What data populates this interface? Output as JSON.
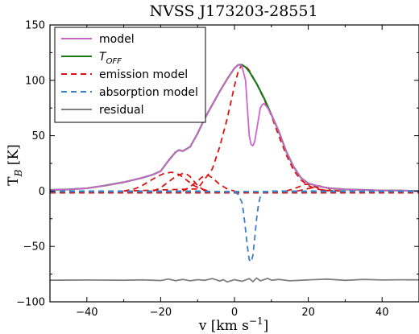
{
  "chart_data": {
    "type": "line",
    "title": "NVSS J173203-28551",
    "xlabel": "v [km s⁻¹]",
    "ylabel": "T_B [K]",
    "xlim": [
      -50,
      50
    ],
    "ylim": [
      -100,
      150
    ],
    "xticks": [
      -40,
      -20,
      0,
      20,
      40
    ],
    "yticks": [
      -100,
      -50,
      0,
      50,
      100,
      150
    ],
    "grid": false,
    "legend_position": "top-left",
    "series": [
      {
        "name": "model",
        "style": "solid",
        "color": "#cc66cc",
        "x": [
          -50,
          -45,
          -40,
          -35,
          -30,
          -25,
          -22,
          -20,
          -18,
          -16,
          -15,
          -14,
          -12,
          -10,
          -8,
          -6,
          -4,
          -2,
          0,
          1,
          2,
          3,
          3.5,
          4,
          4.5,
          5,
          5.5,
          6,
          6.5,
          7,
          7.5,
          8,
          9,
          10,
          12,
          14,
          16,
          18,
          20,
          22,
          24,
          26,
          28,
          30,
          35,
          40,
          45,
          50
        ],
        "y": [
          1,
          1.5,
          2.5,
          5,
          8,
          12,
          15,
          18,
          27,
          35,
          37,
          36,
          40,
          52,
          66,
          78,
          90,
          101,
          111,
          114,
          113,
          100,
          75,
          50,
          42,
          41,
          45,
          55,
          65,
          75,
          78,
          79,
          75,
          69,
          54,
          36,
          22,
          12,
          7,
          5,
          3.5,
          2.5,
          2,
          1.5,
          1,
          0.5,
          0.5,
          0
        ]
      },
      {
        "name": "T_OFF",
        "style": "solid",
        "color": "#1a7a1a",
        "x": [
          -50,
          -45,
          -40,
          -35,
          -30,
          -25,
          -22,
          -20,
          -18,
          -16,
          -15,
          -14,
          -12,
          -10,
          -8,
          -6,
          -4,
          -2,
          0,
          1,
          2,
          3,
          4,
          6,
          8,
          10,
          12,
          14,
          16,
          18,
          20,
          22,
          24,
          26,
          28,
          30,
          35,
          40,
          45,
          50
        ],
        "y": [
          1,
          1.5,
          2.5,
          5,
          8,
          12,
          15,
          18,
          27,
          35,
          37,
          36,
          40,
          52,
          66,
          78,
          90,
          101,
          111,
          114,
          114,
          112,
          108,
          97,
          84,
          69,
          54,
          36,
          22,
          12,
          7,
          5,
          3.5,
          2.5,
          2,
          1.5,
          1,
          0.5,
          0.5,
          0
        ]
      },
      {
        "name": "emission model",
        "style": "dashed",
        "color": "#dd1111",
        "components": [
          {
            "x": [
              -30,
              -10,
              -6,
              -4,
              -2,
              0,
              1,
              2,
              3,
              4,
              6,
              8,
              10,
              12,
              14,
              16,
              18,
              20,
              22,
              25,
              30
            ],
            "y": [
              0,
              2,
              20,
              40,
              65,
              95,
              108,
              114,
              113,
              109,
              97,
              83,
              68,
              50,
              33,
              19,
              10,
              5,
              2,
              0.5,
              0
            ]
          },
          {
            "x": [
              -30,
              -27,
              -25,
              -23,
              -21,
              -19,
              -17,
              -15,
              -13,
              -11,
              -9,
              -7
            ],
            "y": [
              0,
              2,
              5,
              9,
              13,
              16,
              17,
              15,
              10,
              5,
              2,
              0
            ]
          },
          {
            "x": [
              -22,
              -20,
              -18,
              -16,
              -14,
              -13,
              -12,
              -11,
              -10,
              -8
            ],
            "y": [
              0,
              3,
              8,
              13,
              16,
              15.5,
              13,
              9,
              5,
              0
            ]
          },
          {
            "x": [
              -14,
              -12,
              -10,
              -9,
              -8,
              -7,
              -6,
              -5,
              -4,
              -2,
              0
            ],
            "y": [
              0,
              4,
              9,
              12,
              14,
              14,
              12,
              9,
              6,
              2,
              0
            ]
          },
          {
            "x": [
              14,
              16,
              18,
              19,
              20,
              21,
              22,
              24,
              26
            ],
            "y": [
              0,
              2,
              4.5,
              6,
              6,
              5,
              3.5,
              1,
              0
            ]
          },
          {
            "x": [
              17,
              19,
              21,
              22,
              23,
              24,
              25,
              26,
              28
            ],
            "y": [
              0,
              1.5,
              3,
              4,
              4.5,
              4,
              3,
              1.5,
              0
            ]
          }
        ]
      },
      {
        "name": "absorption model",
        "style": "dashed",
        "color": "#3a7fc1",
        "x": [
          -50,
          -10,
          0,
          1,
          2,
          2.5,
          3,
          3.5,
          4,
          4.5,
          5,
          5.5,
          6,
          6.5,
          7,
          8,
          10,
          20,
          50
        ],
        "y": [
          0,
          0,
          -1,
          -3,
          -10,
          -20,
          -35,
          -50,
          -62,
          -64,
          -58,
          -42,
          -25,
          -12,
          -5,
          -1,
          0,
          0,
          0
        ]
      },
      {
        "name": "residual",
        "style": "solid",
        "color": "#808080",
        "x": [
          -50,
          -40,
          -30,
          -25,
          -20,
          -18,
          -16,
          -14,
          -12,
          -10,
          -8,
          -6,
          -4,
          -3,
          -2,
          0,
          2,
          4,
          5,
          6,
          7,
          8,
          9,
          10,
          12,
          15,
          20,
          25,
          30,
          35,
          40,
          45,
          50
        ],
        "y": [
          -80.5,
          -80.3,
          -80.5,
          -80.2,
          -80.8,
          -79.5,
          -80.9,
          -79.8,
          -81,
          -80,
          -80.6,
          -79,
          -81.2,
          -80,
          -82,
          -80,
          -81.5,
          -79,
          -81.8,
          -78.5,
          -81,
          -80,
          -78.8,
          -80.5,
          -79.8,
          -81,
          -80.2,
          -79.5,
          -80.6,
          -79.8,
          -80.3,
          -80.1,
          -80.2
        ]
      }
    ],
    "extra_lines": [
      {
        "style": "dashed",
        "color": "#dd1111",
        "y": -1.5
      },
      {
        "style": "dashed",
        "color": "#3a7fc1",
        "y": -0.5
      }
    ]
  }
}
